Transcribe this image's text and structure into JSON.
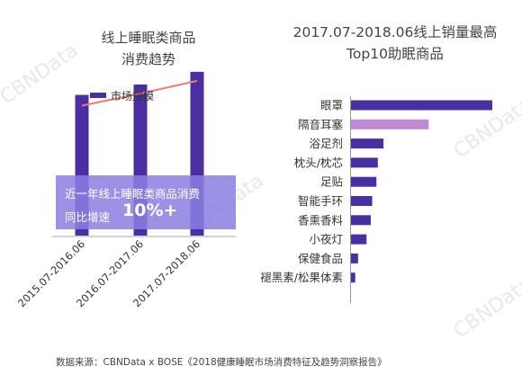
{
  "watermark": "CBNData",
  "left_chart_title_line1": "线上睡眠类商品",
  "left_chart_title_line2": "消费趋势",
  "right_chart_title_line1": "2017.07-2018.06线上销量最高",
  "right_chart_title_line2": "Top10助眠商品",
  "callout_text": "近一年线上睡眠类商品消费",
  "callout_text2": "同比增速",
  "callout_value": "10%+",
  "source": "数据来源：CBNData x BOSE《2018健康睡眠市场消费特征及趋势洞察报告》",
  "colors": {
    "bar": "#4a2fa3",
    "highlight_bar": "#c08ad8",
    "line": "#f07a7a",
    "callout_bg": "#8b7fe0"
  },
  "chart_data": [
    {
      "type": "bar",
      "legend": [
        "市场规模"
      ],
      "categories": [
        "2015.07-2016.06",
        "2016.07-2017.06",
        "2017.07-2018.06"
      ],
      "series": [
        {
          "name": "市场规模",
          "values": [
            100,
            109,
            120
          ]
        }
      ],
      "trend_line": [
        100,
        109,
        120
      ],
      "ylim": [
        0,
        130
      ]
    },
    {
      "type": "bar",
      "orientation": "horizontal",
      "categories": [
        "眼罩",
        "隔音耳塞",
        "浴足剂",
        "枕头/枕芯",
        "足贴",
        "智能手环",
        "香熏香料",
        "小夜灯",
        "保健食品",
        "褪黑素/松果体素"
      ],
      "values": [
        100,
        55,
        23,
        19,
        18,
        15,
        14,
        11,
        5,
        3
      ],
      "highlight_index": 1,
      "xlim": [
        0,
        100
      ]
    }
  ]
}
